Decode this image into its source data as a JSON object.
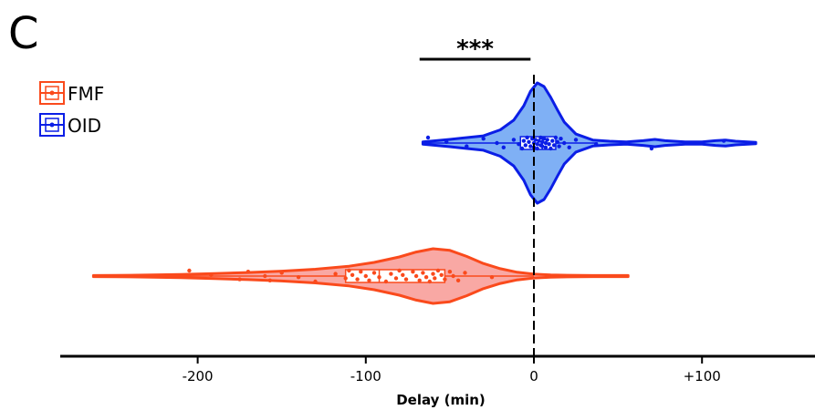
{
  "panel_label": "C",
  "significance_label": "***",
  "chart_data": {
    "type": "violin",
    "orientation": "horizontal",
    "xlabel": "Delay (min)",
    "xlim": [
      -265,
      165
    ],
    "xticks": [
      {
        "value": -200,
        "label": "-200"
      },
      {
        "value": -100,
        "label": "-100"
      },
      {
        "value": 0,
        "label": "0"
      },
      {
        "value": 100,
        "label": "+100"
      }
    ],
    "reference_line": {
      "x": 0,
      "style": "dashed"
    },
    "significance": {
      "text": "***",
      "x_range": [
        -68,
        -2
      ]
    },
    "legend": {
      "position": "top-left",
      "entries": [
        "FMF",
        "OID"
      ]
    },
    "series": [
      {
        "name": "OID",
        "edge_color": "#0b1ee6",
        "fill_color": "#7fb0f5",
        "box": {
          "q1": -8,
          "median": 5,
          "q3": 13,
          "whisker_low": -65,
          "whisker_high": 38
        },
        "range": [
          -66,
          132
        ],
        "density": [
          [
            -66,
            0.02
          ],
          [
            -50,
            0.06
          ],
          [
            -30,
            0.12
          ],
          [
            -20,
            0.22
          ],
          [
            -12,
            0.38
          ],
          [
            -6,
            0.62
          ],
          [
            -2,
            0.86
          ],
          [
            2,
            1.0
          ],
          [
            6,
            0.94
          ],
          [
            10,
            0.76
          ],
          [
            14,
            0.55
          ],
          [
            18,
            0.35
          ],
          [
            25,
            0.15
          ],
          [
            35,
            0.05
          ],
          [
            45,
            0.03
          ],
          [
            55,
            0.02
          ],
          [
            65,
            0.04
          ],
          [
            72,
            0.06
          ],
          [
            78,
            0.04
          ],
          [
            90,
            0.02
          ],
          [
            100,
            0.02
          ],
          [
            108,
            0.04
          ],
          [
            114,
            0.05
          ],
          [
            120,
            0.03
          ],
          [
            132,
            0.01
          ]
        ],
        "points": [
          -63,
          -52,
          -40,
          -30,
          -22,
          -18,
          -12,
          -9,
          -7,
          -6,
          -5,
          -4,
          -3,
          -2,
          -1,
          0,
          0,
          1,
          2,
          2,
          3,
          4,
          4,
          5,
          5,
          6,
          7,
          7,
          8,
          9,
          10,
          11,
          12,
          13,
          14,
          15,
          16,
          18,
          21,
          25,
          37,
          70,
          113
        ]
      },
      {
        "name": "FMF",
        "edge_color": "#fa4a1c",
        "fill_color": "#f9a8a4",
        "box": {
          "q1": -112,
          "median": -92,
          "q3": -53,
          "whisker_low": -262,
          "whisker_high": 0
        },
        "range": [
          -262,
          56
        ],
        "density": [
          [
            -262,
            0.02
          ],
          [
            -240,
            0.03
          ],
          [
            -210,
            0.06
          ],
          [
            -190,
            0.09
          ],
          [
            -170,
            0.13
          ],
          [
            -150,
            0.18
          ],
          [
            -130,
            0.25
          ],
          [
            -110,
            0.36
          ],
          [
            -95,
            0.5
          ],
          [
            -80,
            0.7
          ],
          [
            -70,
            0.88
          ],
          [
            -60,
            1.0
          ],
          [
            -50,
            0.94
          ],
          [
            -40,
            0.72
          ],
          [
            -30,
            0.46
          ],
          [
            -20,
            0.27
          ],
          [
            -10,
            0.14
          ],
          [
            0,
            0.07
          ],
          [
            10,
            0.04
          ],
          [
            20,
            0.03
          ],
          [
            35,
            0.02
          ],
          [
            56,
            0.02
          ]
        ],
        "points": [
          -205,
          -192,
          -175,
          -170,
          -160,
          -157,
          -150,
          -140,
          -130,
          -118,
          -112,
          -110,
          -108,
          -105,
          -103,
          -100,
          -98,
          -95,
          -92,
          -88,
          -85,
          -82,
          -80,
          -78,
          -76,
          -72,
          -70,
          -68,
          -66,
          -64,
          -62,
          -60,
          -59,
          -57,
          -55,
          -53,
          -50,
          -48,
          -45,
          -41,
          -25
        ]
      }
    ]
  }
}
